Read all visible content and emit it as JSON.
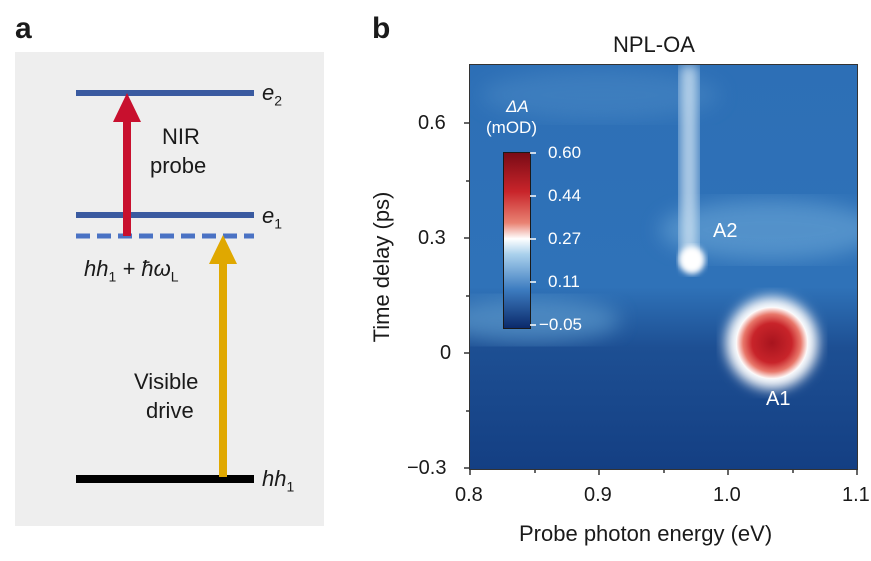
{
  "panel_a": {
    "letter": "a",
    "levels": [
      {
        "label_base": "e",
        "label_sub": "2"
      },
      {
        "label_base": "e",
        "label_sub": "1"
      },
      {
        "label_base": "hh",
        "label_sub": "1",
        "suffix": " + ħω",
        "suffix_sub": "L"
      },
      {
        "label_base": "hh",
        "label_sub": "1"
      }
    ],
    "arrows": [
      {
        "label_lines": [
          "NIR",
          "probe"
        ],
        "color": "#c8102e"
      },
      {
        "label_lines": [
          "Visible",
          "drive"
        ],
        "color": "#e0a800"
      }
    ],
    "colors": {
      "level": "#3a5aa0",
      "ground": "#000000",
      "background": "#eeeeee"
    }
  },
  "panel_b": {
    "letter": "b",
    "title": "NPL-OA",
    "colorbar": {
      "title_symbol": "ΔA",
      "title_units": "(mOD)",
      "ticks": [
        "0.60",
        "0.44",
        "0.27",
        "0.11",
        "−0.05"
      ],
      "range": [
        -0.05,
        0.6
      ],
      "colors": [
        "#0b2a6b",
        "#2f6db3",
        "#9cc9e8",
        "#ffffff",
        "#f2a08a",
        "#c8242a",
        "#7a0b16"
      ]
    },
    "annotations": [
      "A2",
      "A1"
    ]
  },
  "chart_data": {
    "type": "heatmap",
    "title": "NPL-OA",
    "xlabel": "Probe photon energy (eV)",
    "ylabel": "Time delay (ps)",
    "xlim": [
      0.8,
      1.1
    ],
    "ylim": [
      -0.3,
      0.75
    ],
    "xticks": [
      "0.8",
      "0.9",
      "1.0",
      "1.1"
    ],
    "yticks": [
      "−0.3",
      "0",
      "0.3",
      "0.6"
    ],
    "features": [
      {
        "name": "A1",
        "x": 1.04,
        "y": 0.03,
        "value": 0.6
      },
      {
        "name": "A2",
        "x": 0.97,
        "y": 0.24,
        "value": 0.25
      }
    ]
  }
}
